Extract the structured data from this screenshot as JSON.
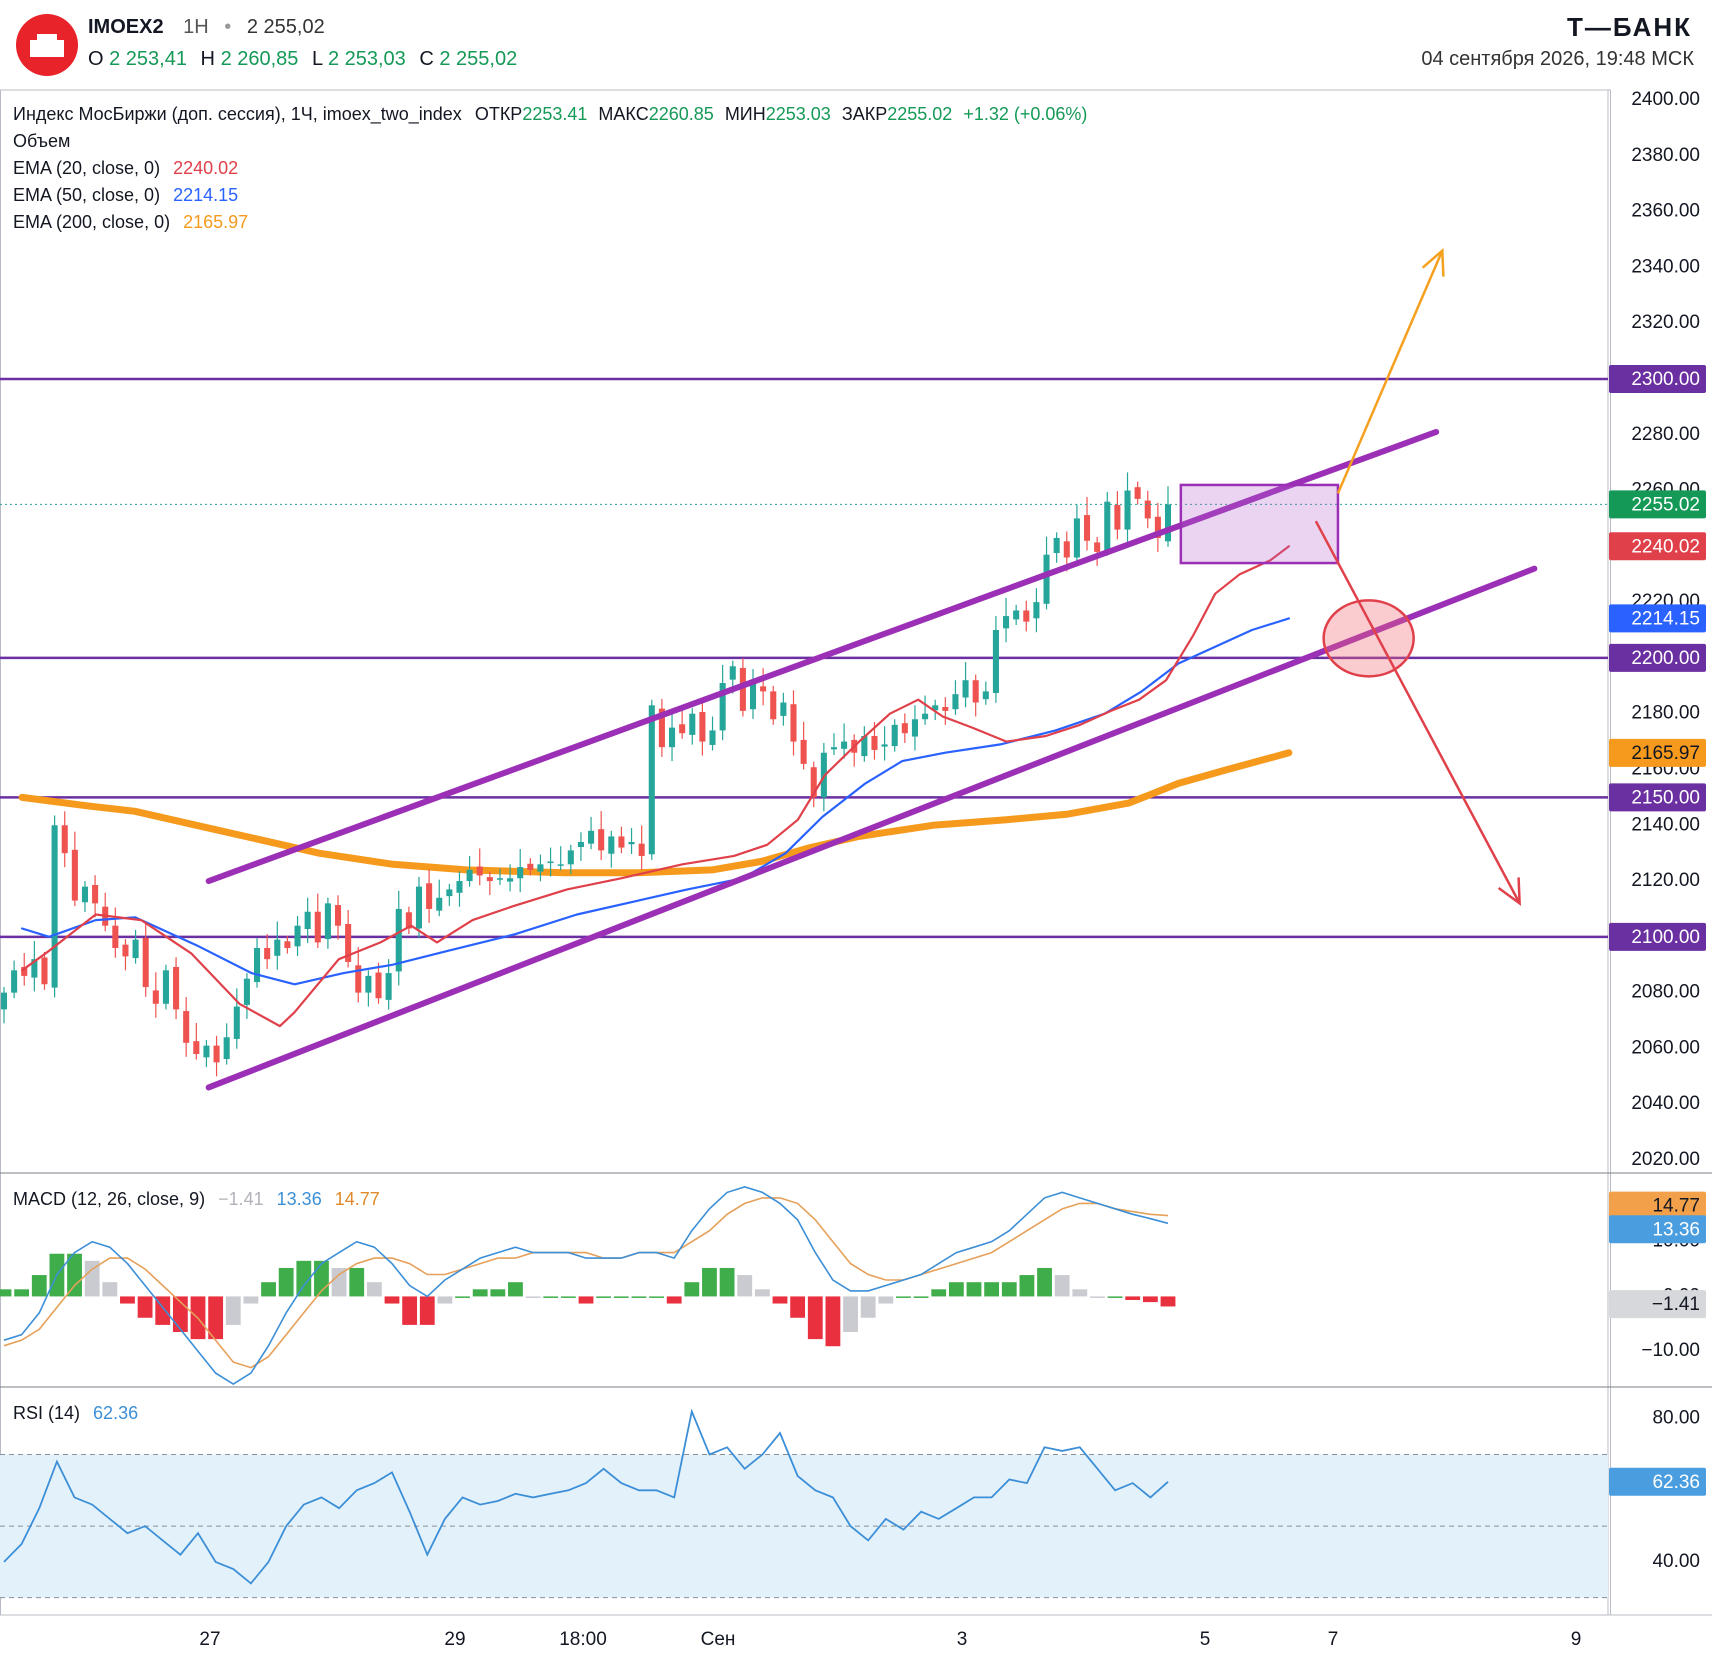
{
  "header": {
    "symbol": "IMOEX2",
    "interval": "1H",
    "dot": "•",
    "last": "2 255,02",
    "ohlc": {
      "o_label": "O",
      "o_value": "2 253,41",
      "h_label": "H",
      "h_value": "2 260,85",
      "l_label": "L",
      "l_value": "2 253,03",
      "c_label": "C",
      "c_value": "2 255,02"
    },
    "brand": "Т—БАНК",
    "datetime": "04 сентября 2026, 19:48 МСК"
  },
  "legend": {
    "line1": {
      "name": "Индекс МосБиржи (доп. сессия), 1Ч, imoex_two_index",
      "open_label": "ОТКР",
      "open": "2253.41",
      "high_label": "МАКС",
      "high": "2260.85",
      "low_label": "МИН",
      "low": "2253.03",
      "close_label": "ЗАКР",
      "close": "2255.02",
      "change": "+1.32 (+0.06%)"
    },
    "volume": "Объем",
    "ema20": {
      "label": "EMA (20, close, 0)",
      "value": "2240.02"
    },
    "ema50": {
      "label": "EMA (50, close, 0)",
      "value": "2214.15"
    },
    "ema200": {
      "label": "EMA (200, close, 0)",
      "value": "2165.97"
    },
    "macd": {
      "label": "MACD (12, 26, close, 9)",
      "hist": "−1.41",
      "macd": "13.36",
      "signal": "14.77"
    },
    "rsi": {
      "label": "RSI (14)",
      "value": "62.36"
    }
  },
  "colors": {
    "up": "#26a69a",
    "down": "#ef5350",
    "ema20": "#e0404a",
    "ema50": "#2962ff",
    "ema200": "#f59a1c",
    "level": "#6a2fa0",
    "channel": "#9b2fb6",
    "target_up": "#f5a01f",
    "target_down": "#e0404a"
  },
  "chart_data": [
    {
      "type": "candlestick",
      "panel": "price",
      "ylim": [
        2020,
        2400
      ],
      "yticks": [
        "2400.00",
        "2380.00",
        "2360.00",
        "2340.00",
        "2320.00",
        "2300.00",
        "2280.00",
        "2260.00",
        "2240.00",
        "2220.00",
        "2200.00",
        "2180.00",
        "2160.00",
        "2140.00",
        "2120.00",
        "2100.00",
        "2080.00",
        "2060.00",
        "2040.00",
        "2020.00"
      ],
      "x_ticks": [
        "27",
        "29",
        "18:00",
        "Сен",
        "3",
        "5",
        "7",
        "9"
      ],
      "last_price": 2255.02,
      "price_tags": [
        {
          "label": "2300.00",
          "value": 2300,
          "kind": "level"
        },
        {
          "label": "2255.02",
          "value": 2255.02,
          "kind": "last"
        },
        {
          "label": "2240.02",
          "value": 2240.02,
          "kind": "ema20"
        },
        {
          "label": "2214.15",
          "value": 2214.15,
          "kind": "ema50"
        },
        {
          "label": "2200.00",
          "value": 2200,
          "kind": "level"
        },
        {
          "label": "2165.97",
          "value": 2165.97,
          "kind": "ema200"
        },
        {
          "label": "2150.00",
          "value": 2150,
          "kind": "level"
        },
        {
          "label": "2100.00",
          "value": 2100,
          "kind": "level"
        }
      ],
      "levels": [
        2300,
        2200,
        2150,
        2100
      ],
      "close_path": [
        2080,
        2088,
        2086,
        2092,
        2083,
        2140,
        2130,
        2113,
        2118,
        2112,
        2104,
        2096,
        2093,
        2099,
        2082,
        2076,
        2088,
        2074,
        2062,
        2058,
        2061,
        2055,
        2064,
        2075,
        2085,
        2096,
        2092,
        2099,
        2096,
        2104,
        2109,
        2098,
        2112,
        2104,
        2091,
        2080,
        2086,
        2078,
        2087,
        2110,
        2103,
        2118,
        2110,
        2114,
        2117,
        2120,
        2124,
        2122,
        2120,
        2121,
        2121,
        2125,
        2124,
        2126,
        2127,
        2126,
        2131,
        2134,
        2138,
        2131,
        2136,
        2132,
        2134,
        2129,
        2183,
        2168,
        2175,
        2173,
        2180,
        2170,
        2174,
        2191,
        2197,
        2181,
        2191,
        2188,
        2178,
        2184,
        2170,
        2162,
        2150,
        2166,
        2168,
        2170,
        2166,
        2172,
        2167,
        2169,
        2176,
        2173,
        2178,
        2180,
        2183,
        2181,
        2187,
        2192,
        2184,
        2188,
        2210,
        2215,
        2217,
        2213,
        2220,
        2237,
        2243,
        2236,
        2250,
        2242,
        2238,
        2256,
        2246,
        2260,
        2257,
        2250,
        2243,
        2255.02
      ],
      "ema20": [
        [
          2018,
          2088
        ],
        [
          2040,
          2095
        ],
        [
          2078,
          2108
        ],
        [
          2115,
          2106
        ],
        [
          2156,
          2094
        ],
        [
          2195,
          2076
        ],
        [
          2228,
          2068
        ],
        [
          2240,
          2073
        ],
        [
          2276,
          2092
        ],
        [
          2310,
          2098
        ],
        [
          2335,
          2104
        ],
        [
          2356,
          2098
        ],
        [
          2385,
          2106
        ],
        [
          2418,
          2111
        ],
        [
          2462,
          2117
        ],
        [
          2506,
          2121
        ],
        [
          2556,
          2126
        ],
        [
          2598,
          2129
        ],
        [
          2625,
          2133
        ],
        [
          2650,
          2142
        ],
        [
          2672,
          2158
        ],
        [
          2700,
          2170
        ],
        [
          2725,
          2180
        ],
        [
          2748,
          2185
        ],
        [
          2768,
          2179
        ],
        [
          2792,
          2175
        ],
        [
          2820,
          2170
        ],
        [
          2852,
          2172
        ],
        [
          2880,
          2176
        ],
        [
          2905,
          2181
        ],
        [
          2928,
          2185
        ],
        [
          2950,
          2192
        ],
        [
          2972,
          2208
        ],
        [
          2990,
          2223
        ],
        [
          3010,
          2230
        ],
        [
          3035,
          2235
        ],
        [
          3050,
          2240.02
        ]
      ],
      "ema50": [
        [
          2018,
          2103
        ],
        [
          2040,
          2100
        ],
        [
          2078,
          2106
        ],
        [
          2110,
          2107
        ],
        [
          2160,
          2097
        ],
        [
          2205,
          2087
        ],
        [
          2240,
          2083
        ],
        [
          2280,
          2087
        ],
        [
          2320,
          2090
        ],
        [
          2365,
          2095
        ],
        [
          2420,
          2101
        ],
        [
          2470,
          2108
        ],
        [
          2520,
          2113
        ],
        [
          2560,
          2117
        ],
        [
          2605,
          2121
        ],
        [
          2640,
          2130
        ],
        [
          2670,
          2143
        ],
        [
          2705,
          2155
        ],
        [
          2735,
          2163
        ],
        [
          2770,
          2166
        ],
        [
          2815,
          2169
        ],
        [
          2860,
          2174
        ],
        [
          2900,
          2180
        ],
        [
          2930,
          2188
        ],
        [
          2960,
          2198
        ],
        [
          2990,
          2204
        ],
        [
          3020,
          2210
        ],
        [
          3050,
          2214.15
        ]
      ],
      "ema200": [
        [
          2018,
          2150
        ],
        [
          2070,
          2147
        ],
        [
          2110,
          2145
        ],
        [
          2160,
          2140
        ],
        [
          2210,
          2135
        ],
        [
          2260,
          2130
        ],
        [
          2320,
          2126
        ],
        [
          2380,
          2124
        ],
        [
          2460,
          2123
        ],
        [
          2520,
          2123
        ],
        [
          2580,
          2124
        ],
        [
          2620,
          2127
        ],
        [
          2660,
          2132
        ],
        [
          2700,
          2136
        ],
        [
          2760,
          2140
        ],
        [
          2820,
          2142
        ],
        [
          2870,
          2144
        ],
        [
          2920,
          2148
        ],
        [
          2960,
          2155
        ],
        [
          3000,
          2160
        ],
        [
          3050,
          2165.97
        ]
      ],
      "drawings": {
        "channel_upper": [
          [
            2170,
            2120
          ],
          [
            3170,
            2281
          ]
        ],
        "channel_lower": [
          [
            2170,
            2046
          ],
          [
            3250,
            2232
          ]
        ],
        "consolidation_box": {
          "x": [
            2962,
            3090
          ],
          "y": [
            2234,
            2262
          ]
        },
        "arrow_up": [
          [
            3090,
            2259
          ],
          [
            3175,
            2346
          ]
        ],
        "arrow_down": [
          [
            3072,
            2249
          ],
          [
            3238,
            2112
          ]
        ],
        "breakdown_circle": {
          "x": 3115,
          "y": 2207
        }
      }
    },
    {
      "type": "bar+line",
      "panel": "macd",
      "ylim": [
        -16,
        22
      ],
      "yticks": [
        "10.00",
        "0.00",
        "−10.00"
      ],
      "series": [
        {
          "name": "MACD (12, 26, close, 9)",
          "values": [
            -8,
            -7,
            -3,
            4,
            8,
            10,
            9,
            6,
            2,
            -2,
            -6,
            -10,
            -14,
            -16,
            -14,
            -9,
            -3,
            2,
            6,
            8,
            10,
            9,
            6,
            2,
            0,
            3,
            5,
            7,
            8,
            9,
            8,
            8,
            8,
            7,
            7,
            7,
            8,
            8,
            7,
            12,
            16,
            19,
            20,
            19,
            17,
            14,
            8,
            3,
            1,
            1,
            2,
            3,
            4,
            6,
            8,
            9,
            10,
            12,
            15,
            18,
            19,
            18,
            17,
            16,
            15,
            14.2,
            13.36
          ]
        },
        {
          "name": "signal",
          "values": [
            -9,
            -8,
            -6,
            -2,
            2,
            5,
            7,
            7,
            5,
            2,
            -1,
            -4,
            -8,
            -12,
            -13,
            -11,
            -7,
            -3,
            1,
            4,
            6,
            7,
            7,
            6,
            4,
            4,
            5,
            6,
            7,
            7,
            8,
            8,
            8,
            8,
            7,
            7,
            8,
            8,
            8,
            10,
            12,
            15,
            17,
            18,
            18,
            17,
            14,
            10,
            6,
            4,
            3,
            3,
            4,
            5,
            6,
            7,
            8,
            10,
            12,
            14,
            16,
            17,
            17,
            16,
            15.5,
            15,
            14.77
          ]
        }
      ],
      "histogram_last": -1.41
    },
    {
      "type": "line",
      "panel": "rsi",
      "ylim": [
        26,
        88
      ],
      "yticks": [
        "80.00",
        "60.00",
        "40.00"
      ],
      "bands": [
        70,
        50,
        30
      ],
      "series": [
        {
          "name": "RSI (14)",
          "values": [
            40,
            45,
            55,
            68,
            58,
            56,
            52,
            48,
            50,
            46,
            42,
            48,
            40,
            38,
            34,
            40,
            50,
            56,
            58,
            55,
            60,
            62,
            65,
            54,
            42,
            52,
            58,
            56,
            57,
            59,
            58,
            59,
            60,
            62,
            66,
            62,
            60,
            60,
            58,
            82,
            70,
            72,
            66,
            70,
            76,
            64,
            60,
            58,
            50,
            46,
            52,
            49,
            54,
            52,
            55,
            58,
            58,
            63,
            62,
            72,
            71,
            72,
            66,
            60,
            62,
            58,
            62.36
          ]
        }
      ],
      "last_value": 62.36
    }
  ]
}
